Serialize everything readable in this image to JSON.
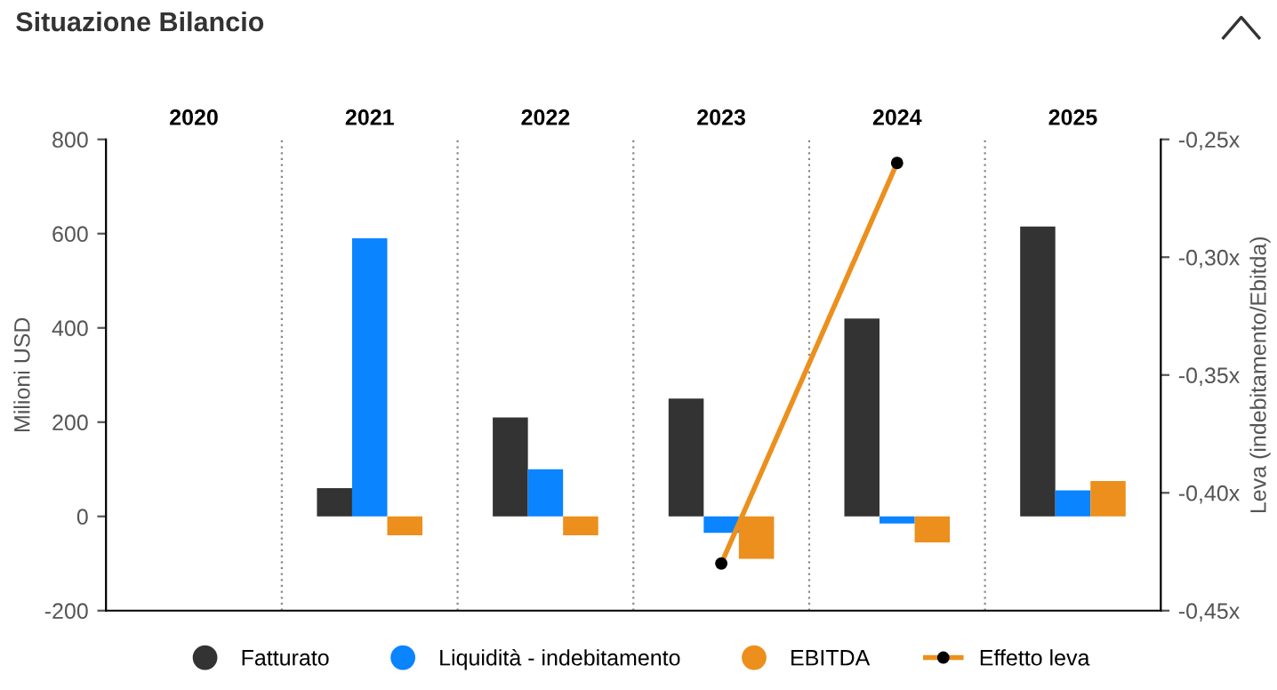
{
  "chart_data": {
    "type": "bar",
    "title": "Situazione Bilancio",
    "ylabel": "Milioni USD",
    "y2label": "Leva (indebitamento/Ebitda)",
    "categories": [
      "2020",
      "2021",
      "2022",
      "2023",
      "2024",
      "2025"
    ],
    "series": [
      {
        "name": "Fatturato",
        "color": "#333333",
        "values": [
          null,
          60,
          210,
          250,
          420,
          615
        ]
      },
      {
        "name": "Liquidità - indebitamento",
        "color": "#0a84ff",
        "values": [
          null,
          590,
          100,
          -35,
          -15,
          55
        ]
      },
      {
        "name": "EBITDA",
        "color": "#ec8f1c",
        "values": [
          null,
          -40,
          -40,
          -90,
          -55,
          75
        ]
      },
      {
        "name": "Effetto leva",
        "type": "line",
        "axis": "y2",
        "color": "#ec8f1c",
        "marker": "circle",
        "values": [
          null,
          null,
          null,
          -0.43,
          -0.26,
          null
        ]
      }
    ],
    "ylim": [
      -200,
      800
    ],
    "yticks": [
      -200,
      0,
      200,
      400,
      600,
      800
    ],
    "y2lim": [
      -0.45,
      -0.25
    ],
    "y2ticks": [
      {
        "value": -0.45,
        "label": "-0,45x"
      },
      {
        "value": -0.4,
        "label": "-0,40x"
      },
      {
        "value": -0.35,
        "label": "-0,35x"
      },
      {
        "value": -0.3,
        "label": "-0,30x"
      },
      {
        "value": -0.25,
        "label": "-0,25x"
      }
    ],
    "grid": "x",
    "legend": "bottom"
  }
}
